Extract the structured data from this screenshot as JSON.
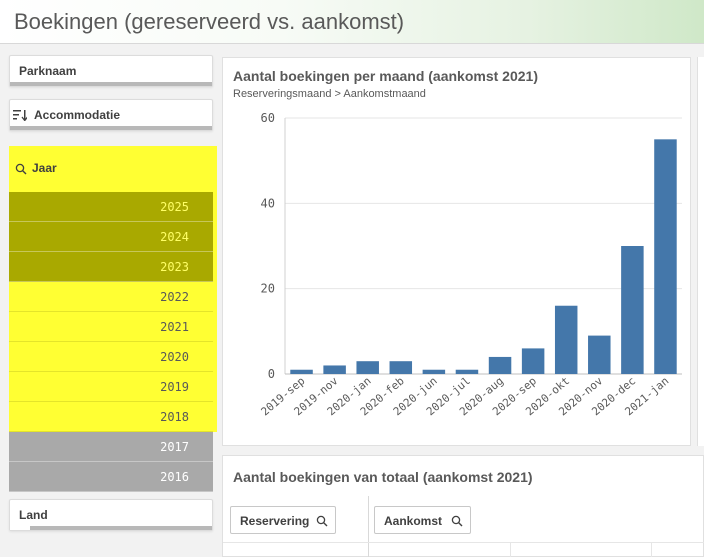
{
  "header": {
    "title": "Boekingen (gereserveerd vs. aankomst)"
  },
  "filters": {
    "parknaam": "Parknaam",
    "accommodatie": "Accommodatie",
    "jaar": "Jaar",
    "land": "Land"
  },
  "years": [
    {
      "label": "2025",
      "state": "excluded"
    },
    {
      "label": "2024",
      "state": "excluded"
    },
    {
      "label": "2023",
      "state": "excluded"
    },
    {
      "label": "2022",
      "state": "selected"
    },
    {
      "label": "2021",
      "state": "selected"
    },
    {
      "label": "2020",
      "state": "selected"
    },
    {
      "label": "2019",
      "state": "selected"
    },
    {
      "label": "2018",
      "state": "selected"
    },
    {
      "label": "2017",
      "state": "alternative"
    },
    {
      "label": "2016",
      "state": "alternative"
    }
  ],
  "chart": {
    "title": "Aantal boekingen per maand (aankomst 2021)",
    "subtitle": "Reserveringsmaand > Aankomstmaand"
  },
  "chart_data": {
    "type": "bar",
    "categories": [
      "2019-sep",
      "2019-nov",
      "2020-jan",
      "2020-feb",
      "2020-jun",
      "2020-jul",
      "2020-aug",
      "2020-sep",
      "2020-okt",
      "2020-nov",
      "2020-dec",
      "2021-jan"
    ],
    "values": [
      1,
      2,
      3,
      3,
      1,
      1,
      4,
      6,
      16,
      9,
      30,
      55
    ],
    "yticks": [
      0,
      20,
      40,
      60
    ],
    "ylim": [
      0,
      60
    ],
    "bar_color": "#4477aa",
    "grid": true
  },
  "table": {
    "title": "Aantal boekingen van totaal (aankomst 2021)",
    "col1": "Reservering",
    "col2": "Aankomst"
  },
  "colors": {
    "selected": "#ffff33",
    "excluded": "#a9a900",
    "alternative": "#a9a9a9",
    "bar": "#4477aa"
  }
}
